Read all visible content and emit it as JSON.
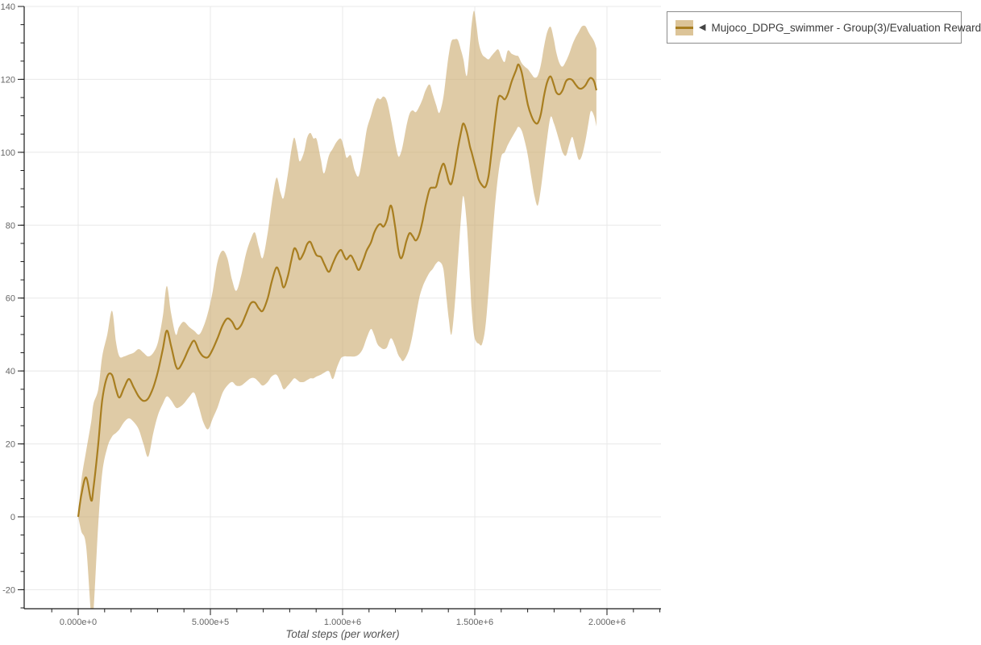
{
  "legend": {
    "collapse_icon": "left-triangle",
    "label": "Mujoco_DDPG_swimmer - Group(3)/Evaluation Reward"
  },
  "x_axis": {
    "caption": "Total steps (per worker)",
    "major_tick_labels": [
      "0.000e+0",
      "5.000e+5",
      "1.000e+6",
      "1.500e+6",
      "2.000e+6"
    ],
    "major_tick_values": [
      0,
      500000,
      1000000,
      1500000,
      2000000
    ],
    "minor_tick_step": 100000
  },
  "y_axis": {
    "major_tick_labels": [
      "-20",
      "0",
      "20",
      "40",
      "60",
      "80",
      "100",
      "120",
      "140"
    ],
    "major_tick_values": [
      -20,
      0,
      20,
      40,
      60,
      80,
      100,
      120,
      140
    ],
    "minor_tick_step": 5
  },
  "colors": {
    "line": "#a87e20",
    "band": "#c9a96a",
    "band_opacity": 0.6,
    "grid": "#e8e8e8",
    "axis": "#1a1a1a",
    "tick_label": "#666666",
    "caption": "#555555",
    "legend_border": "#8c8c8c",
    "legend_text": "#3a3a3a"
  },
  "chart_data": {
    "type": "line",
    "series_name": "Mujoco_DDPG_swimmer - Group(3)/Evaluation Reward",
    "xlabel": "Total steps (per worker)",
    "ylabel": "",
    "grid": true,
    "legend_position": "top-right",
    "x_range": [
      -204000,
      2204000
    ],
    "y_range": [
      -25.2,
      141.8
    ],
    "x_scale": 1000,
    "x": [
      0,
      12,
      30,
      49,
      58,
      76,
      91,
      110,
      128,
      143,
      156,
      174,
      192,
      210,
      229,
      247,
      265,
      284,
      302,
      320,
      335,
      351,
      369,
      381,
      399,
      421,
      439,
      457,
      473,
      491,
      509,
      527,
      546,
      564,
      582,
      598,
      616,
      634,
      652,
      668,
      683,
      698,
      717,
      732,
      750,
      765,
      777,
      793,
      805,
      817,
      829,
      838,
      854,
      866,
      878,
      890,
      902,
      918,
      930,
      948,
      963,
      979,
      994,
      1006,
      1015,
      1031,
      1046,
      1061,
      1076,
      1091,
      1107,
      1119,
      1131,
      1143,
      1155,
      1168,
      1183,
      1198,
      1210,
      1219,
      1228,
      1241,
      1253,
      1265,
      1277,
      1290,
      1302,
      1314,
      1329,
      1341,
      1354,
      1366,
      1381,
      1393,
      1402,
      1412,
      1424,
      1436,
      1448,
      1457,
      1470,
      1482,
      1488,
      1497,
      1506,
      1515,
      1527,
      1540,
      1552,
      1564,
      1576,
      1589,
      1601,
      1613,
      1625,
      1640,
      1656,
      1665,
      1677,
      1689,
      1701,
      1714,
      1726,
      1738,
      1750,
      1762,
      1774,
      1787,
      1799,
      1808,
      1820,
      1832,
      1845,
      1857,
      1869,
      1881,
      1893,
      1905,
      1918,
      1930,
      1939,
      1951,
      1960
    ],
    "mean": [
      0,
      6,
      10.8,
      4.5,
      8,
      20,
      32,
      38.5,
      38.9,
      35,
      32.7,
      35.5,
      37.8,
      35.5,
      33,
      31.8,
      32.5,
      35.5,
      40,
      46,
      51.1,
      47,
      41.5,
      40.7,
      43,
      46.5,
      48.3,
      45.5,
      44,
      43.8,
      46,
      49,
      52.5,
      54.4,
      53.5,
      51.5,
      52.5,
      55.5,
      58.5,
      58.8,
      57.2,
      56.5,
      60,
      64.5,
      68.4,
      66,
      62.9,
      66,
      70,
      73.6,
      72.5,
      70.6,
      72.5,
      74.8,
      75.4,
      73.5,
      71.7,
      71.3,
      69.5,
      67.2,
      69.5,
      72,
      73.2,
      71.5,
      70.6,
      71.7,
      69.8,
      67.7,
      70,
      73,
      75.2,
      77.8,
      79.6,
      80.3,
      79.6,
      81.5,
      85.4,
      80,
      73.5,
      71,
      71.8,
      75.5,
      77.8,
      77,
      75.8,
      77.5,
      81,
      85.5,
      89.8,
      90.3,
      90.6,
      94,
      96.9,
      94.5,
      92,
      91.4,
      95.5,
      101,
      105.5,
      107.9,
      105.5,
      101.5,
      100,
      97.5,
      95,
      92.5,
      91,
      90.5,
      93.5,
      100.5,
      108,
      114.8,
      115.3,
      114.5,
      116,
      119.5,
      122.5,
      124.1,
      122,
      117.5,
      113,
      110,
      108.3,
      108,
      110.5,
      115.5,
      119.3,
      120.8,
      118.5,
      116.5,
      115.9,
      117,
      119.5,
      120.1,
      119.8,
      118.6,
      117.6,
      117.5,
      118.3,
      119.8,
      120.4,
      119.5,
      117
    ],
    "lower": [
      0,
      -4,
      -8,
      -27,
      -26,
      -2,
      12,
      19,
      22,
      23,
      24,
      26,
      27,
      26,
      24,
      20,
      16.5,
      23,
      28,
      31,
      33,
      32,
      30,
      30,
      31,
      33,
      34,
      30,
      26,
      24,
      27,
      30,
      34,
      36,
      37,
      36,
      36,
      37,
      38,
      38,
      37,
      36,
      37,
      38.5,
      39,
      37,
      35,
      36,
      37,
      38,
      37.5,
      37,
      37,
      37.5,
      38,
      38,
      38.5,
      39,
      39.5,
      40,
      37.8,
      41,
      43.5,
      44,
      44,
      44,
      44,
      44.5,
      46,
      49,
      51.5,
      50,
      47.5,
      46.5,
      46,
      46.5,
      49,
      47,
      44.5,
      43.5,
      42.7,
      44,
      46.2,
      50,
      55,
      60,
      63,
      65,
      67,
      68,
      69.5,
      70,
      68,
      60,
      54,
      50,
      58,
      70,
      82,
      88,
      80,
      65,
      57,
      50,
      48,
      47.5,
      47.3,
      52,
      62,
      74,
      85,
      94,
      99,
      100,
      102,
      104,
      106,
      107,
      106,
      103,
      99,
      93,
      88,
      85.4,
      90,
      97,
      104,
      109.7,
      108,
      106,
      103,
      100,
      99.1,
      102,
      104.2,
      101,
      98,
      99,
      103,
      108,
      111.3,
      110,
      107.1
    ],
    "upper": [
      0,
      10,
      18,
      26,
      31,
      35,
      44,
      50,
      56.5,
      48,
      44,
      44,
      44.5,
      45,
      46,
      45,
      44,
      45,
      48,
      55,
      63.3,
      56,
      50,
      52,
      53.5,
      52,
      51,
      50,
      52,
      56,
      62,
      70,
      73,
      71,
      65,
      62,
      66,
      72,
      76,
      78,
      74,
      71,
      78,
      86,
      93,
      89,
      87.5,
      94,
      100,
      104,
      100.5,
      97.5,
      100,
      104,
      105.3,
      103.8,
      103.5,
      98,
      94.2,
      99,
      101,
      103,
      103.7,
      101,
      98.5,
      99.1,
      95,
      93.5,
      99,
      106,
      110,
      113,
      114.8,
      114.5,
      115.3,
      114,
      109,
      103,
      99,
      99.5,
      102,
      107,
      110.5,
      111.5,
      111,
      112.5,
      114.5,
      117,
      118.6,
      116,
      113,
      110.8,
      115,
      122,
      127,
      130.5,
      131,
      130.8,
      128,
      125.5,
      121,
      130,
      135,
      138.8,
      135,
      130,
      127,
      126,
      125.5,
      126.5,
      127.5,
      128.2,
      126,
      124.8,
      127.9,
      127,
      126.5,
      126.3,
      124.5,
      123.5,
      122.8,
      121.5,
      120.5,
      121,
      124,
      129,
      133,
      134.4,
      131,
      127.5,
      124.5,
      123.5,
      125,
      127,
      129.5,
      131.5,
      133,
      134.5,
      134.6,
      133,
      131.9,
      130.5,
      128.5
    ]
  }
}
